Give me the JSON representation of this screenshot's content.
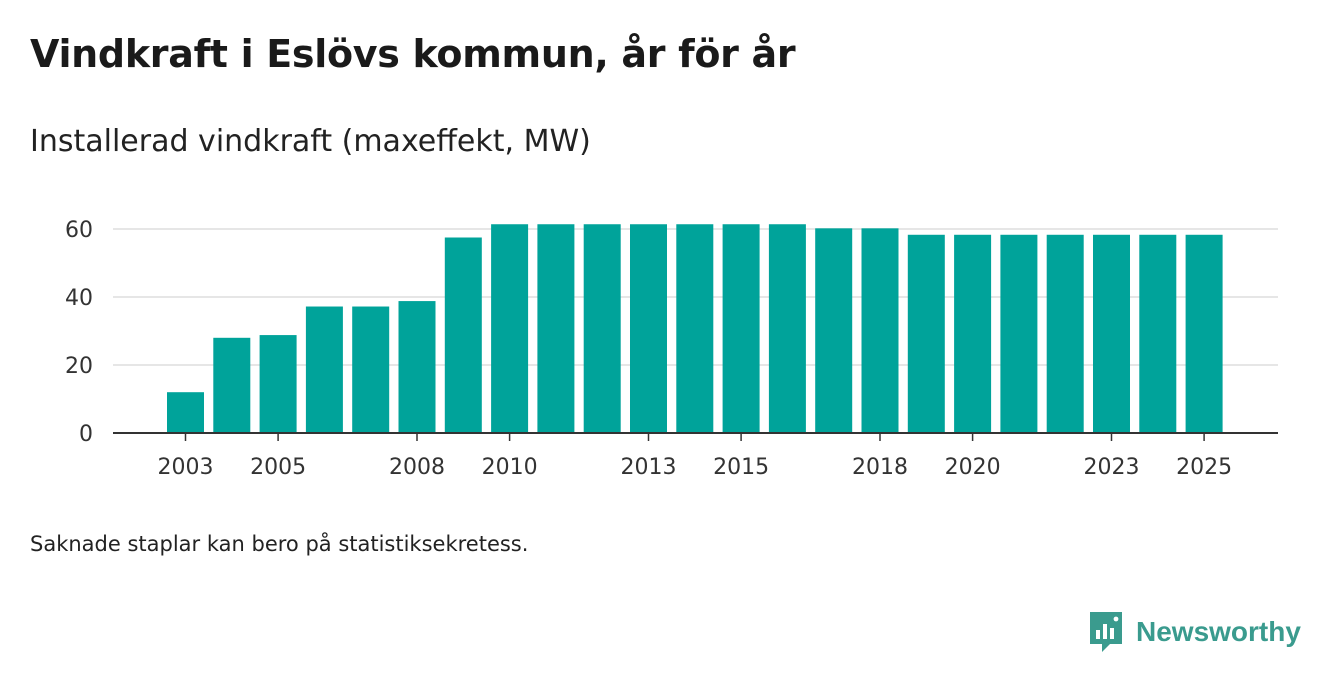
{
  "header": {
    "title": "Vindkraft i Eslövs kommun, år för år",
    "subtitle": "Installerad vindkraft (maxeffekt, MW)"
  },
  "footer": {
    "note": "Saknade staplar kan bero på statistiksekretess."
  },
  "brand": {
    "name": "Newsworthy",
    "icon": "newsworthy-logo-icon",
    "color": "#3a9b8e"
  },
  "chart_data": {
    "type": "bar",
    "title": "Installerad vindkraft (maxeffekt, MW)",
    "xlabel": "",
    "ylabel": "",
    "categories": [
      "2003",
      "2004",
      "2005",
      "2006",
      "2007",
      "2008",
      "2009",
      "2010",
      "2011",
      "2012",
      "2013",
      "2014",
      "2015",
      "2016",
      "2017",
      "2018",
      "2019",
      "2020",
      "2021",
      "2022",
      "2023",
      "2024",
      "2025"
    ],
    "values": [
      12,
      28,
      28.8,
      37.2,
      37.2,
      38.8,
      57.5,
      61.4,
      61.4,
      61.4,
      61.4,
      61.4,
      61.4,
      61.4,
      60.2,
      60.2,
      58.3,
      58.3,
      58.3,
      58.3,
      58.3,
      58.3,
      58.3
    ],
    "x_tick_labels": [
      "2003",
      "2005",
      "2008",
      "2010",
      "2013",
      "2015",
      "2018",
      "2020",
      "2023",
      "2025"
    ],
    "y_ticks": [
      0,
      20,
      40,
      60
    ],
    "ylim": [
      0,
      65
    ],
    "grid": true,
    "bar_color": "#00a39a"
  }
}
